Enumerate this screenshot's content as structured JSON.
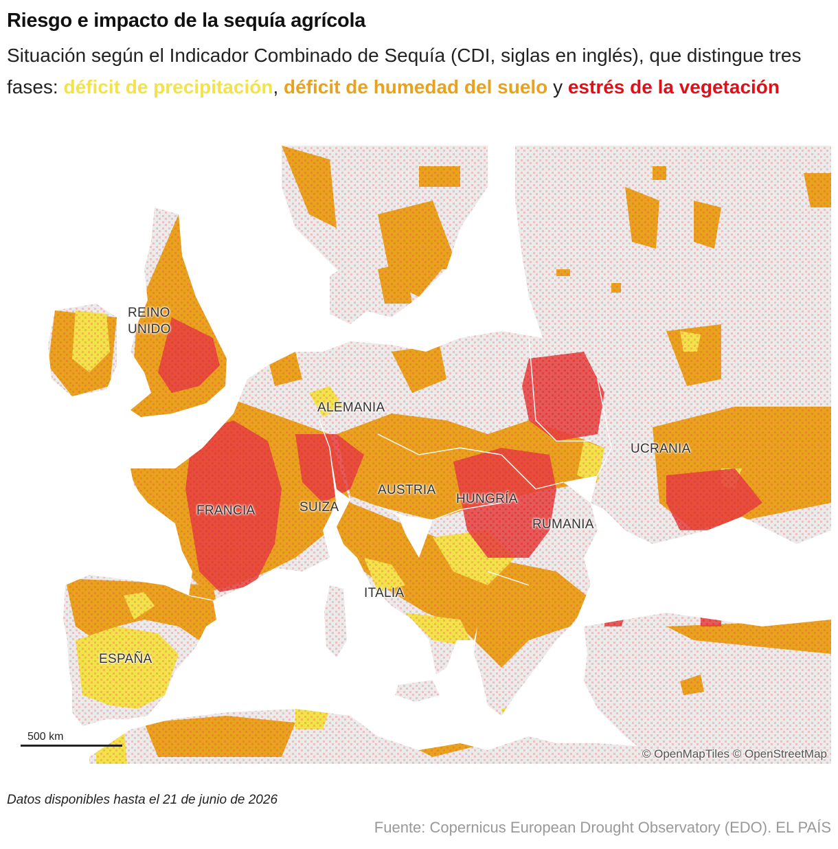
{
  "title": "Riesgo e impacto de la sequía agrícola",
  "subtitle": {
    "intro": "Situación según el Indicador Combinado de Sequía (CDI, siglas en inglés), que distingue tres fases: ",
    "phase1": "déficit de precipitación",
    "sep1": ", ",
    "phase2": "déficit de humedad del suelo",
    "sep2": " y ",
    "phase3": "estrés de la vegetación"
  },
  "colors": {
    "precipitation": "#f2e34b",
    "soil_moisture": "#e8a21e",
    "vegetation": "#e0101b",
    "land": "#ebebeb",
    "sea": "#ffffff",
    "border": "#ffffff"
  },
  "map": {
    "labels": {
      "uk": "REINO UNIDO",
      "germany": "ALEMANIA",
      "ukraine": "UCRANIA",
      "austria": "AUSTRIA",
      "hungary": "HUNGRÍA",
      "france": "FRANCIA",
      "switzerland": "SUIZA",
      "romania": "RUMANIA",
      "italy": "ITALIA",
      "spain": "ESPAÑA"
    },
    "scale_label": "500 km",
    "attribution": "© OpenMapTiles © OpenStreetMap"
  },
  "footer": {
    "note": "Datos disponibles hasta el 21 de junio de 2026",
    "source": "Fuente: Copernicus European Drought Observatory (EDO). EL PAÍS"
  }
}
